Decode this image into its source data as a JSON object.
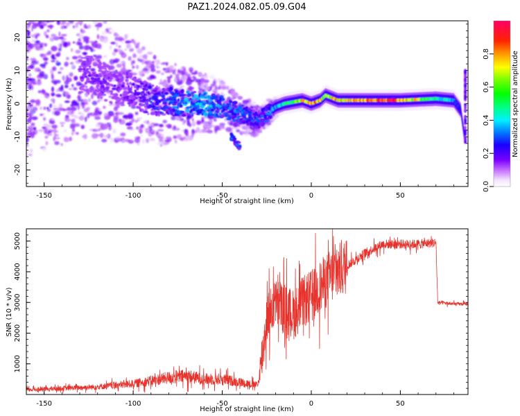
{
  "figure": {
    "title": "PAZ1.2024.082.05.09.G04"
  },
  "chart_data": [
    {
      "type": "heatmap",
      "xlabel": "Height of straight line (km)",
      "ylabel": "Frequency (Hz)",
      "xlim": [
        -160,
        88
      ],
      "ylim": [
        -25,
        25
      ],
      "x_ticks": [
        -150,
        -100,
        -50,
        0,
        50
      ],
      "y_ticks": [
        -20,
        -10,
        0,
        10,
        20
      ],
      "colorbar": {
        "label": "Normalized spectral amplitude",
        "range": [
          0,
          1
        ],
        "ticks": [
          0.0,
          0.2,
          0.4,
          0.6,
          0.8
        ],
        "colormap": "gist_rainbow_r"
      },
      "ridge": {
        "x": [
          -125,
          -110,
          -100,
          -90,
          -80,
          -70,
          -60,
          -50,
          -40,
          -30,
          -25,
          -20,
          -15,
          -10,
          -5,
          0,
          5,
          8,
          15,
          30,
          50,
          70,
          80,
          84,
          86
        ],
        "y": [
          9,
          5,
          4,
          1,
          0.5,
          0,
          0,
          -1,
          -3,
          -5,
          -3,
          -1,
          0,
          0.5,
          1,
          0,
          1,
          2.5,
          1,
          1,
          1,
          1.5,
          1,
          -2,
          -10
        ],
        "amplitude": [
          0.2,
          0.2,
          0.22,
          0.3,
          0.35,
          0.4,
          0.45,
          0.35,
          0.35,
          0.3,
          0.35,
          0.4,
          0.5,
          0.65,
          0.8,
          0.9,
          0.8,
          0.6,
          0.85,
          0.92,
          0.9,
          0.5,
          0.4,
          0.2,
          0.15
        ]
      },
      "artifact": {
        "x": [
          -45,
          -40
        ],
        "y": [
          -10,
          -13
        ]
      }
    },
    {
      "type": "line",
      "xlabel": "Height of straight line (km)",
      "ylabel": "SNR (10 * v/v)",
      "xlim": [
        -160,
        88
      ],
      "ylim": [
        0,
        5400
      ],
      "x_ticks": [
        -150,
        -100,
        -50,
        0,
        50
      ],
      "y_ticks": [
        1000,
        2000,
        3000,
        4000,
        5000
      ],
      "series": [
        {
          "color": "#e8322c",
          "x": [
            -160,
            -140,
            -120,
            -100,
            -90,
            -80,
            -70,
            -60,
            -50,
            -40,
            -35,
            -30,
            -27,
            -25,
            -20,
            -15,
            -10,
            -5,
            0,
            10,
            20,
            30,
            40,
            50,
            60,
            70,
            71,
            80,
            88
          ],
          "y": [
            150,
            200,
            250,
            350,
            450,
            550,
            600,
            500,
            500,
            400,
            350,
            300,
            1500,
            2500,
            3000,
            2800,
            2600,
            3000,
            3200,
            3800,
            4200,
            4600,
            4900,
            4900,
            4900,
            4950,
            3000,
            2950,
            2950
          ]
        }
      ]
    }
  ]
}
